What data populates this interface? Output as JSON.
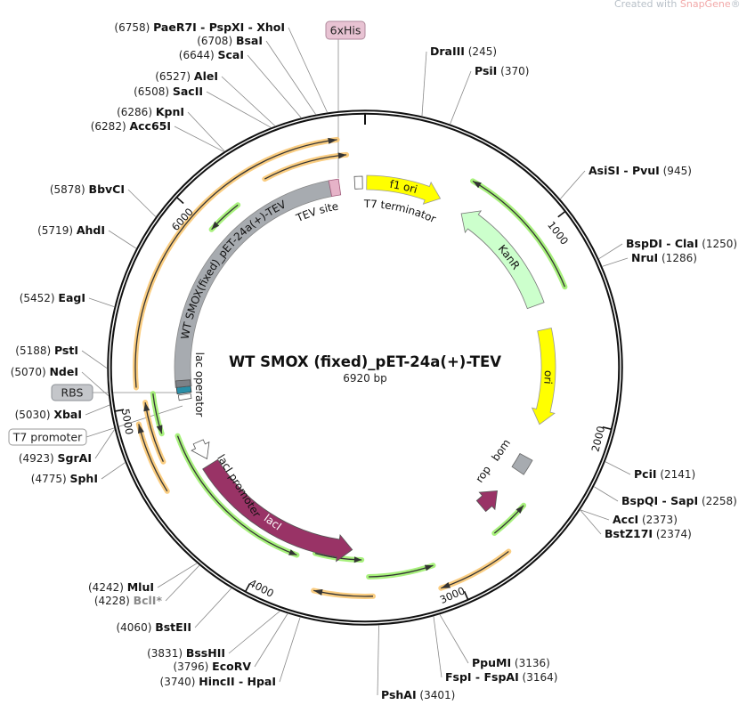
{
  "watermark": {
    "prefix": "Created with ",
    "brand": "SnapGene",
    "suffix": "®"
  },
  "map": {
    "title": "WT SMOX (fixed)_pET-24a(+)-TEV",
    "length_label": "6920 bp",
    "total_bp": 6920
  },
  "ticks": [
    "1000",
    "2000",
    "3000",
    "4000",
    "5000",
    "6000"
  ],
  "enzymes": [
    {
      "name": "PaeR7I - PspXI - XhoI",
      "pos": 6758
    },
    {
      "name": "BsaI",
      "pos": 6708
    },
    {
      "name": "ScaI",
      "pos": 6644
    },
    {
      "name": "AleI",
      "pos": 6527
    },
    {
      "name": "SacII",
      "pos": 6508
    },
    {
      "name": "KpnI",
      "pos": 6286
    },
    {
      "name": "Acc65I",
      "pos": 6282
    },
    {
      "name": "BbvCI",
      "pos": 5878
    },
    {
      "name": "AhdI",
      "pos": 5719
    },
    {
      "name": "EagI",
      "pos": 5452
    },
    {
      "name": "PstI",
      "pos": 5188
    },
    {
      "name": "NdeI",
      "pos": 5070
    },
    {
      "name": "XbaI",
      "pos": 5030
    },
    {
      "name": "SgrAI",
      "pos": 4923
    },
    {
      "name": "SphI",
      "pos": 4775
    },
    {
      "name": "MluI",
      "pos": 4242
    },
    {
      "name": "BclI*",
      "pos": 4228,
      "color": "#8a8a8a"
    },
    {
      "name": "BstEII",
      "pos": 4060
    },
    {
      "name": "BssHII",
      "pos": 3831
    },
    {
      "name": "EcoRV",
      "pos": 3796
    },
    {
      "name": "HincII - HpaI",
      "pos": 3740
    },
    {
      "name": "DraIII",
      "pos": 245
    },
    {
      "name": "PsiI",
      "pos": 370
    },
    {
      "name": "AsiSI - PvuI",
      "pos": 945
    },
    {
      "name": "BspDI - ClaI",
      "pos": 1250
    },
    {
      "name": "NruI",
      "pos": 1286
    },
    {
      "name": "PciI",
      "pos": 2141
    },
    {
      "name": "BspQI - SapI",
      "pos": 2258
    },
    {
      "name": "AccI",
      "pos": 2373
    },
    {
      "name": "BstZ17I",
      "pos": 2374
    },
    {
      "name": "PpuMI",
      "pos": 3136
    },
    {
      "name": "FspI - FspAI",
      "pos": 3164
    },
    {
      "name": "PshAI",
      "pos": 3401
    }
  ],
  "boxed_labels": [
    {
      "label": "6xHis",
      "fill": "#e8c3d3",
      "stroke": "#b08a9c"
    },
    {
      "label": "RBS",
      "fill": "#c4c6ca",
      "stroke": "#8c9096"
    },
    {
      "label": "T7 promoter",
      "fill": "#ffffff",
      "stroke": "#999999"
    }
  ],
  "features": [
    {
      "label": "f1 ori",
      "color": "#ffff00"
    },
    {
      "label": "T7 terminator",
      "color": "#ffffff"
    },
    {
      "label": "TEV site",
      "color": "#e6b3c8"
    },
    {
      "label": "WT SMOX(fixed)_pET-24a(+)-TEV",
      "color": "#a7abb0"
    },
    {
      "label": "KanR",
      "color": "#ccffcc"
    },
    {
      "label": "ori",
      "color": "#ffff00"
    },
    {
      "label": "bom",
      "color": "#a7abb0"
    },
    {
      "label": "rop",
      "color": "#993366"
    },
    {
      "label": "lacI",
      "color": "#993366"
    },
    {
      "label": "lacI promoter",
      "color": "#ffffff"
    },
    {
      "label": "lac operator",
      "color": "#ffffff"
    }
  ],
  "colors": {
    "primer_green": "#99ee66",
    "primer_orange": "#f9c46b",
    "backbone": "#111111",
    "teal": "#2a8fa8"
  }
}
